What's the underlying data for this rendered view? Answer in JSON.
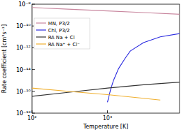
{
  "chart_data": {
    "type": "line",
    "log": true,
    "x_label": "Temperature [K]",
    "y_label": "Rate coefficient [cm³s⁻¹]",
    "xlim": [
      100,
      9000
    ],
    "ylim": [
      1e-18,
      1e-08
    ],
    "xticks": [
      {
        "value": 100,
        "label": "10²"
      },
      {
        "value": 1000,
        "label": "10³"
      }
    ],
    "yticks": [
      {
        "value": 1e-18,
        "label": "10⁻¹⁸"
      },
      {
        "value": 1e-16,
        "label": "10⁻¹⁶"
      },
      {
        "value": 1e-14,
        "label": "10⁻¹⁴"
      },
      {
        "value": 1e-12,
        "label": "10⁻¹²"
      },
      {
        "value": 1e-10,
        "label": "10⁻¹⁰"
      },
      {
        "value": 1e-08,
        "label": "10⁻⁸"
      }
    ],
    "legend": "upper left",
    "series": [
      {
        "name": "MN, P3/2",
        "color": "#c9879f",
        "x": [
          100,
          300,
          1000,
          3000,
          9000
        ],
        "values": [
          5e-09,
          3.5e-09,
          2.4e-09,
          1.7e-09,
          1.2e-09
        ]
      },
      {
        "name": "Chl, P3/2",
        "color": "#2a2ae0",
        "x": [
          1000,
          1100,
          1200,
          1400,
          1700,
          2000,
          3000,
          5000,
          9000
        ],
        "values": [
          1e-17,
          1.5e-16,
          1e-15,
          1.2e-14,
          1e-13,
          5e-13,
          3e-12,
          1e-11,
          2e-11
        ]
      },
      {
        "name": "RA Na + Cl",
        "color": "#333333",
        "x": [
          100,
          300,
          1000,
          3000,
          9000
        ],
        "values": [
          3.5e-17,
          8e-17,
          2e-16,
          4e-16,
          7e-16
        ]
      },
      {
        "name": "RA Na⁺ + Cl⁻",
        "color": "#f0b030",
        "x": [
          100,
          300,
          1000,
          3000,
          5000
        ],
        "values": [
          2e-16,
          1e-16,
          5e-17,
          2.3e-17,
          1.6e-17
        ]
      }
    ]
  }
}
